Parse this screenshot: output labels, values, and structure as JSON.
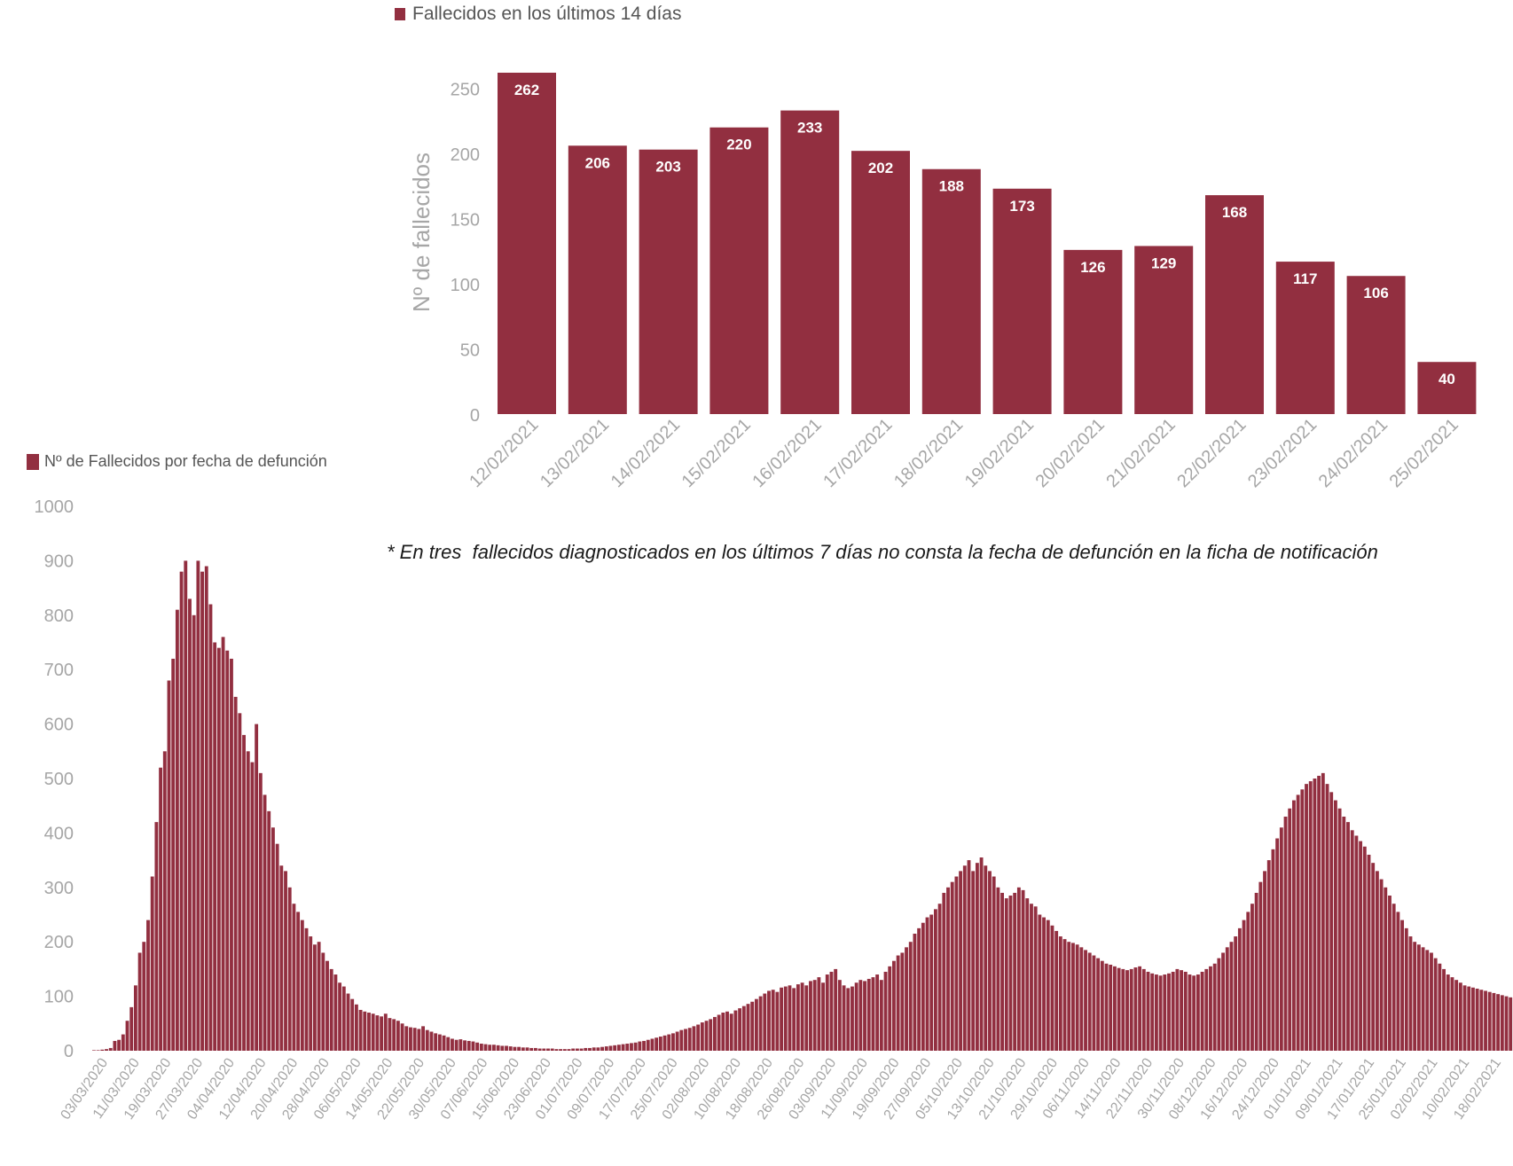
{
  "colors": {
    "bar": "#922f40",
    "axis_text": "#a6a6a6",
    "label_text": "#ffffff",
    "note_text": "#1a1a1a"
  },
  "top_chart": {
    "legend_label": "Fallecidos en los últimos 14 días",
    "ylabel": "Nº de fallecidos"
  },
  "bottom_chart": {
    "legend_label": "Nº de Fallecidos por fecha de defunción"
  },
  "note": "* En tres  fallecidos diagnosticados en los últimos 7 días no consta la fecha de defunción en la ficha de notificación",
  "chart_data": [
    {
      "type": "bar",
      "title": "Fallecidos en los últimos 14 días",
      "ylabel": "Nº de fallecidos",
      "xlabel": "",
      "ylim": [
        0,
        262
      ],
      "yticks": [
        0,
        50,
        100,
        150,
        200,
        250
      ],
      "categories": [
        "12/02/2021",
        "13/02/2021",
        "14/02/2021",
        "15/02/2021",
        "16/02/2021",
        "17/02/2021",
        "18/02/2021",
        "19/02/2021",
        "20/02/2021",
        "21/02/2021",
        "22/02/2021",
        "23/02/2021",
        "24/02/2021",
        "25/02/2021"
      ],
      "values": [
        262,
        206,
        203,
        220,
        233,
        202,
        188,
        173,
        126,
        129,
        168,
        117,
        106,
        40
      ],
      "data_labels": true,
      "grid": false
    },
    {
      "type": "bar",
      "title": "Nº de Fallecidos por fecha de defunción",
      "ylabel": "",
      "xlabel": "",
      "ylim": [
        0,
        1000
      ],
      "yticks": [
        0,
        100,
        200,
        300,
        400,
        500,
        600,
        700,
        800,
        900,
        1000
      ],
      "x_start": "03/03/2020",
      "x_end": "25/02/2021",
      "tick_labels": [
        "03/03/2020",
        "11/03/2020",
        "19/03/2020",
        "27/03/2020",
        "04/04/2020",
        "12/04/2020",
        "20/04/2020",
        "28/04/2020",
        "06/05/2020",
        "14/05/2020",
        "22/05/2020",
        "30/05/2020",
        "07/06/2020",
        "15/06/2020",
        "23/06/2020",
        "01/07/2020",
        "09/07/2020",
        "17/07/2020",
        "25/07/2020",
        "02/08/2020",
        "10/08/2020",
        "18/08/2020",
        "26/08/2020",
        "03/09/2020",
        "11/09/2020",
        "19/09/2020",
        "27/09/2020",
        "05/10/2020",
        "13/10/2020",
        "21/10/2020",
        "29/10/2020",
        "06/11/2020",
        "14/11/2020",
        "22/11/2020",
        "30/11/2020",
        "08/12/2020",
        "16/12/2020",
        "24/12/2020",
        "01/01/2021",
        "09/01/2021",
        "17/01/2021",
        "25/01/2021",
        "02/02/2021",
        "10/02/2021",
        "18/02/2021"
      ],
      "values": [
        1,
        1,
        2,
        3,
        5,
        18,
        20,
        30,
        55,
        80,
        120,
        180,
        200,
        240,
        320,
        420,
        520,
        550,
        680,
        720,
        810,
        880,
        900,
        830,
        800,
        900,
        880,
        890,
        820,
        750,
        740,
        760,
        735,
        720,
        650,
        620,
        580,
        550,
        530,
        600,
        510,
        470,
        440,
        410,
        380,
        340,
        330,
        300,
        270,
        255,
        240,
        225,
        210,
        195,
        200,
        180,
        165,
        150,
        140,
        125,
        118,
        105,
        95,
        85,
        75,
        72,
        70,
        68,
        65,
        63,
        68,
        60,
        58,
        55,
        50,
        45,
        43,
        42,
        40,
        45,
        38,
        35,
        32,
        30,
        28,
        25,
        22,
        20,
        21,
        19,
        18,
        17,
        15,
        13,
        12,
        11,
        11,
        10,
        9,
        9,
        8,
        7,
        7,
        6,
        6,
        5,
        5,
        4,
        4,
        4,
        4,
        3,
        3,
        3,
        3,
        4,
        4,
        4,
        5,
        5,
        6,
        6,
        7,
        8,
        9,
        10,
        11,
        12,
        13,
        14,
        15,
        17,
        18,
        20,
        22,
        24,
        26,
        28,
        30,
        32,
        35,
        38,
        40,
        42,
        45,
        48,
        52,
        55,
        58,
        62,
        66,
        70,
        72,
        68,
        74,
        78,
        82,
        86,
        90,
        95,
        100,
        105,
        110,
        112,
        108,
        116,
        118,
        120,
        115,
        122,
        125,
        120,
        128,
        130,
        135,
        125,
        140,
        145,
        150,
        130,
        120,
        115,
        118,
        125,
        130,
        128,
        132,
        135,
        140,
        130,
        145,
        155,
        165,
        175,
        180,
        190,
        200,
        215,
        225,
        235,
        245,
        250,
        260,
        270,
        290,
        300,
        310,
        320,
        330,
        340,
        350,
        330,
        345,
        355,
        340,
        330,
        320,
        300,
        290,
        280,
        285,
        290,
        300,
        295,
        280,
        270,
        265,
        250,
        245,
        240,
        230,
        220,
        210,
        205,
        200,
        198,
        195,
        190,
        185,
        180,
        175,
        170,
        165,
        160,
        158,
        155,
        152,
        150,
        148,
        150,
        153,
        155,
        150,
        145,
        142,
        140,
        138,
        140,
        142,
        145,
        150,
        148,
        145,
        140,
        138,
        140,
        145,
        150,
        155,
        160,
        170,
        180,
        190,
        200,
        210,
        225,
        240,
        255,
        270,
        290,
        310,
        330,
        350,
        370,
        390,
        410,
        430,
        445,
        460,
        470,
        480,
        490,
        495,
        500,
        505,
        510,
        490,
        475,
        460,
        445,
        430,
        420,
        405,
        395,
        385,
        375,
        360,
        345,
        330,
        315,
        300,
        285,
        270,
        255,
        240,
        225,
        210,
        200,
        195,
        190,
        185,
        180,
        170,
        160,
        150,
        140,
        135,
        130,
        125,
        120,
        118,
        116,
        114,
        112,
        110,
        108,
        106,
        104,
        102,
        100,
        98
      ]
    }
  ]
}
